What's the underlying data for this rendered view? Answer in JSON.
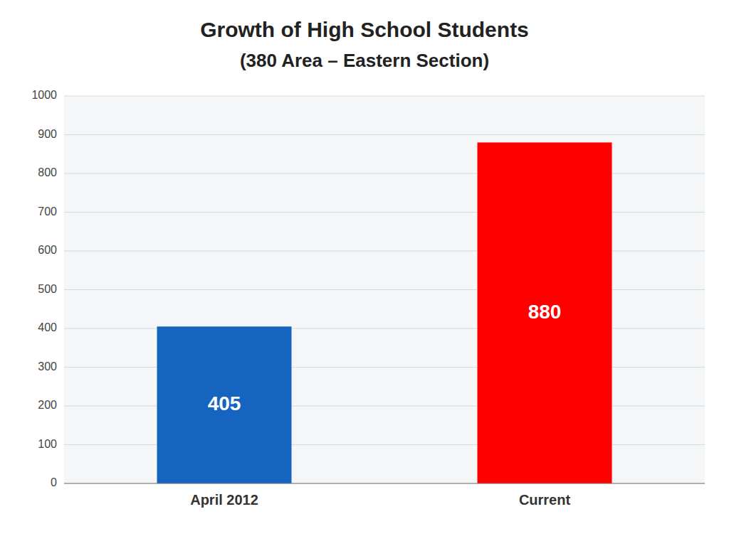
{
  "chart_data": {
    "type": "bar",
    "title": "Growth of High School Students",
    "subtitle": "(380 Area – Eastern Section)",
    "categories": [
      "April 2012",
      "Current"
    ],
    "values": [
      405,
      880
    ],
    "colors": [
      "#1565C0",
      "#FF0000"
    ],
    "ylim": [
      0,
      1000
    ],
    "yticks": [
      0,
      100,
      200,
      300,
      400,
      500,
      600,
      700,
      800,
      900,
      1000
    ],
    "grid": true,
    "data_labels": true
  }
}
